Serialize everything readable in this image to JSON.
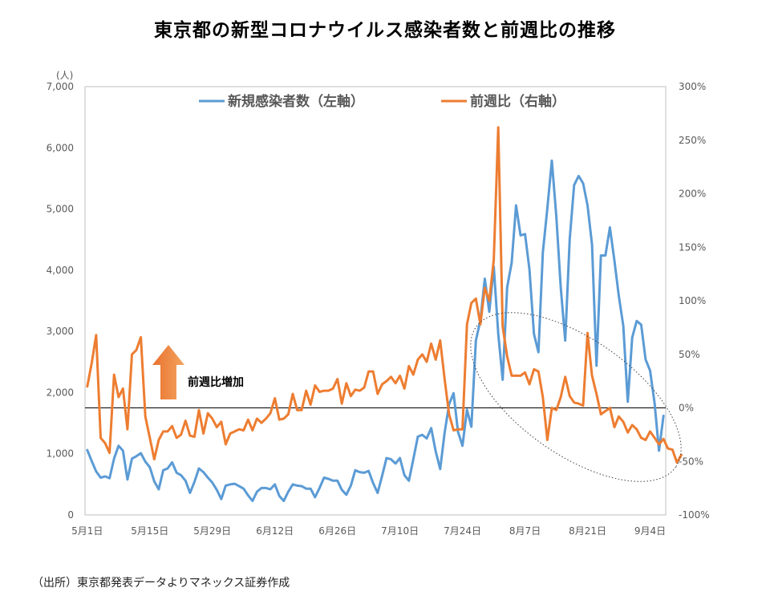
{
  "chart_data": {
    "type": "line",
    "title": "東京都の新型コロナウイルス感染者数と前週比の推移",
    "y_left_unit": "(人)",
    "y_left_ticks": [
      "0",
      "1,000",
      "2,000",
      "3,000",
      "4,000",
      "5,000",
      "6,000",
      "7,000"
    ],
    "y_right_ticks": [
      "-100%",
      "-50%",
      "0%",
      "50%",
      "100%",
      "150%",
      "200%",
      "250%",
      "300%"
    ],
    "ylim_left": [
      0,
      7000
    ],
    "ylim_right": [
      -100,
      300
    ],
    "x_ticks": [
      "5月1日",
      "5月15日",
      "5月29日",
      "6月12日",
      "6月26日",
      "7月10日",
      "7月24日",
      "8月7日",
      "8月21日",
      "9月4日"
    ],
    "series": [
      {
        "name": "新規感染者数（左軸）",
        "axis": "left",
        "color": "#5b9bd5",
        "values": [
          1060,
          880,
          710,
          610,
          630,
          600,
          920,
          1130,
          1050,
          580,
          920,
          960,
          1010,
          870,
          780,
          550,
          420,
          730,
          760,
          860,
          690,
          650,
          560,
          360,
          540,
          760,
          700,
          610,
          530,
          410,
          260,
          480,
          500,
          510,
          470,
          430,
          320,
          230,
          380,
          440,
          440,
          420,
          500,
          310,
          230,
          380,
          500,
          480,
          470,
          430,
          430,
          290,
          440,
          610,
          590,
          560,
          560,
          410,
          330,
          480,
          730,
          700,
          690,
          720,
          520,
          360,
          640,
          930,
          910,
          840,
          930,
          650,
          560,
          910,
          1280,
          1310,
          1250,
          1420,
          1040,
          750,
          1340,
          1810,
          1990,
          1360,
          1130,
          1720,
          1440,
          2850,
          3180,
          3860,
          3320,
          4060,
          2960,
          2210,
          3720,
          4120,
          5060,
          4570,
          4590,
          4010,
          2960,
          2660,
          4290,
          5010,
          5790,
          4880,
          3720,
          2850,
          4510,
          5390,
          5540,
          5420,
          5060,
          4420,
          2440,
          4240,
          4240,
          4700,
          4160,
          3580,
          3090,
          1850,
          2900,
          3170,
          3110,
          2540,
          2360,
          1830,
          1050,
          1620
        ]
      },
      {
        "name": "前週比（右軸）",
        "axis": "right",
        "color": "#ed7d31",
        "values": [
          20,
          42,
          68,
          -28,
          -33,
          -42,
          31,
          10,
          18,
          -20,
          50,
          54,
          66,
          -8,
          -28,
          -48,
          -30,
          -22,
          -22,
          -17,
          -28,
          -25,
          -12,
          -26,
          -27,
          -2,
          -24,
          -5,
          -10,
          -18,
          -13,
          -34,
          -24,
          -22,
          -20,
          -21,
          -11,
          -21,
          -10,
          -14,
          -10,
          -5,
          9,
          -11,
          -10,
          -6,
          13,
          -2,
          -2,
          16,
          3,
          21,
          15,
          16,
          16,
          18,
          27,
          4,
          23,
          11,
          17,
          16,
          19,
          34,
          34,
          13,
          22,
          25,
          29,
          23,
          30,
          18,
          39,
          31,
          45,
          50,
          43,
          60,
          45,
          63,
          27,
          -6,
          -21,
          -20,
          -20,
          78,
          98,
          102,
          78,
          112,
          100,
          138,
          262,
          76,
          48,
          30,
          30,
          30,
          33,
          22,
          36,
          34,
          10,
          -30,
          0,
          -2,
          10,
          29,
          11,
          5,
          4,
          2,
          70,
          30,
          13,
          -6,
          -3,
          0,
          -18,
          -8,
          -13,
          -23,
          -16,
          -20,
          -28,
          -30,
          -22,
          -28,
          -34,
          -29,
          -38,
          -39,
          -51,
          -44
        ]
      }
    ],
    "annotation": "前週比増加",
    "source": "（出所）東京都発表データよりマネックス証券作成"
  }
}
